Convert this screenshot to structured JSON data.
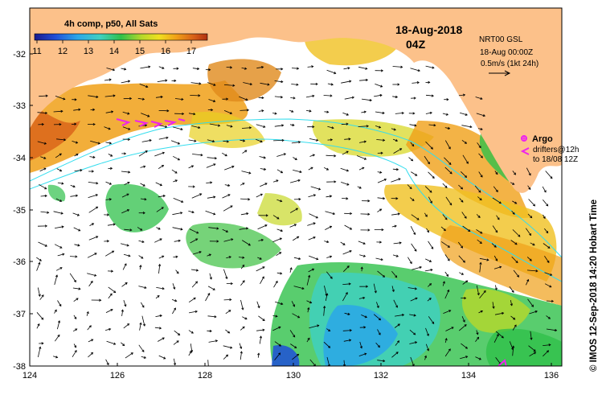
{
  "map": {
    "legend": {
      "title": "4h comp, p50, All Sats",
      "ticks": [
        "11",
        "12",
        "13",
        "14",
        "15",
        "16",
        "17"
      ]
    },
    "date": "18-Aug-2018",
    "time": "04Z",
    "currents": {
      "product": "NRT00 GSL",
      "timestamp": "18-Aug 00:00Z",
      "scale": "0.5m/s (1kt 24h)"
    },
    "argo": {
      "label": "Argo",
      "drifters_line1": "drifters@12h",
      "drifters_line2": "to 18/08 12Z"
    },
    "credit": "© IMOS 12-Sep-2018 14:20 Hobart Time",
    "x_ticks": [
      "124",
      "126",
      "128",
      "130",
      "132",
      "134",
      "136"
    ],
    "y_ticks": [
      "-32",
      "-33",
      "-34",
      "-35",
      "-36",
      "-37",
      "-38"
    ],
    "colors": {
      "land": "#fcc18a",
      "shelf_contour": "#33ddee",
      "argo_marker": "#ee22ee",
      "colorbar": [
        "#1a1a8c",
        "#1f4fd8",
        "#2aa7e8",
        "#3fd0c0",
        "#2fc04a",
        "#b6d82a",
        "#f0e020",
        "#f0a018",
        "#d86018",
        "#b03010"
      ]
    }
  }
}
